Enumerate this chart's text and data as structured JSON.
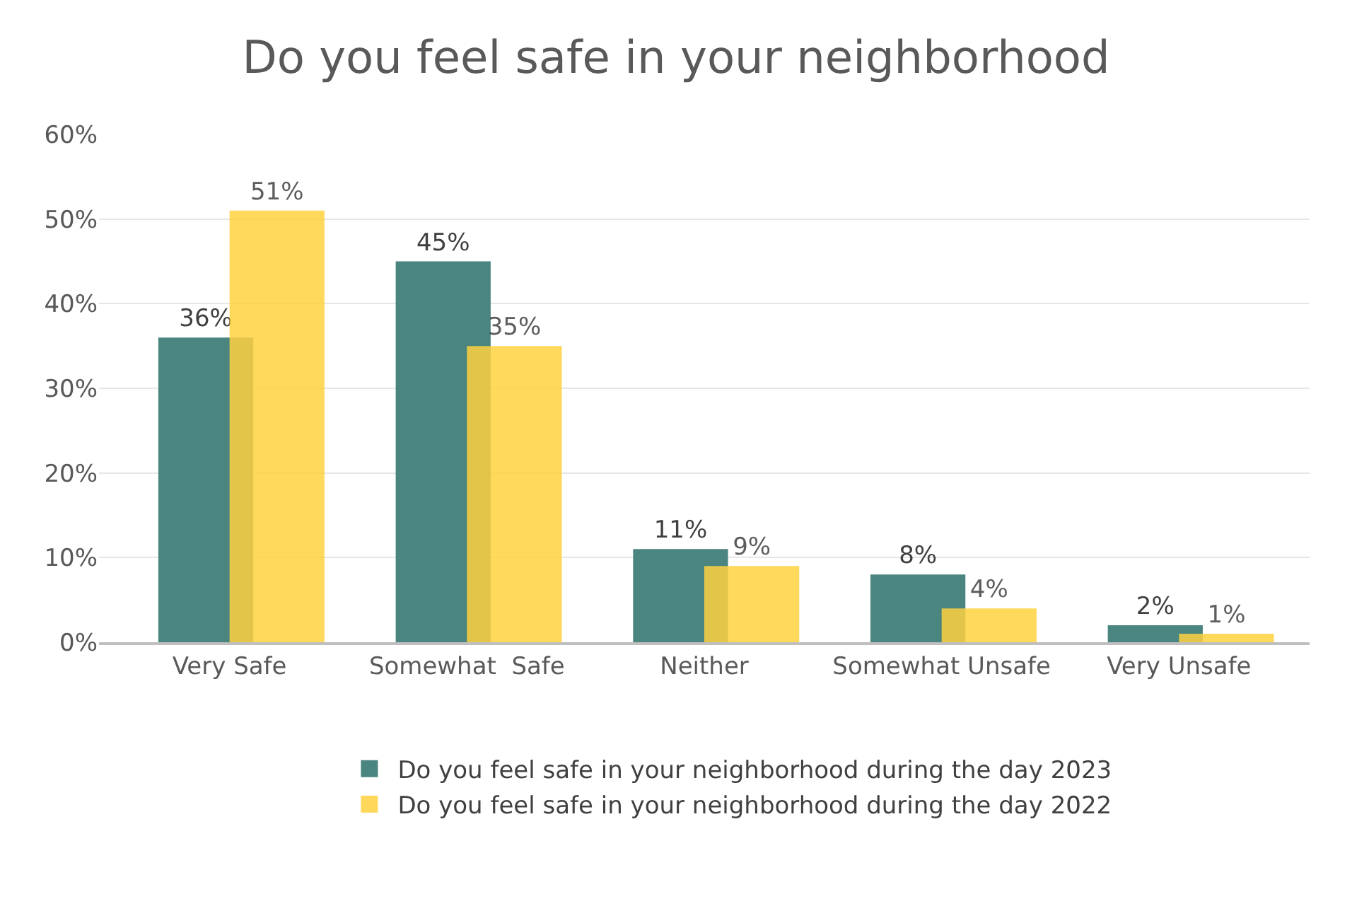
{
  "chart_data": {
    "type": "bar",
    "title": "Do you feel safe in your neighborhood",
    "categories": [
      "Very Safe",
      "Somewhat  Safe",
      "Neither",
      "Somewhat Unsafe",
      "Very Unsafe"
    ],
    "series": [
      {
        "name": "Do you feel safe in your neighborhood during the day 2023",
        "color": "#4a8580",
        "values": [
          36,
          45,
          11,
          8,
          2
        ],
        "value_labels": [
          "36%",
          "45%",
          "11%",
          "8%",
          "2%"
        ]
      },
      {
        "name": "Do you feel safe in your neighborhood during the day 2022",
        "color": "#ffd23f",
        "values": [
          51,
          35,
          9,
          4,
          1
        ],
        "value_labels": [
          "51%",
          "35%",
          "9%",
          "4%",
          "1%"
        ]
      }
    ],
    "ylim": [
      0,
      60
    ],
    "yticks": [
      {
        "value": 0,
        "label": "0%"
      },
      {
        "value": 10,
        "label": "10%"
      },
      {
        "value": 20,
        "label": "20%"
      },
      {
        "value": 30,
        "label": "30%"
      },
      {
        "value": 40,
        "label": "40%"
      },
      {
        "value": 50,
        "label": "50%"
      },
      {
        "value": 60,
        "label": "60%"
      }
    ],
    "grid": "y",
    "legend": "bottom"
  }
}
